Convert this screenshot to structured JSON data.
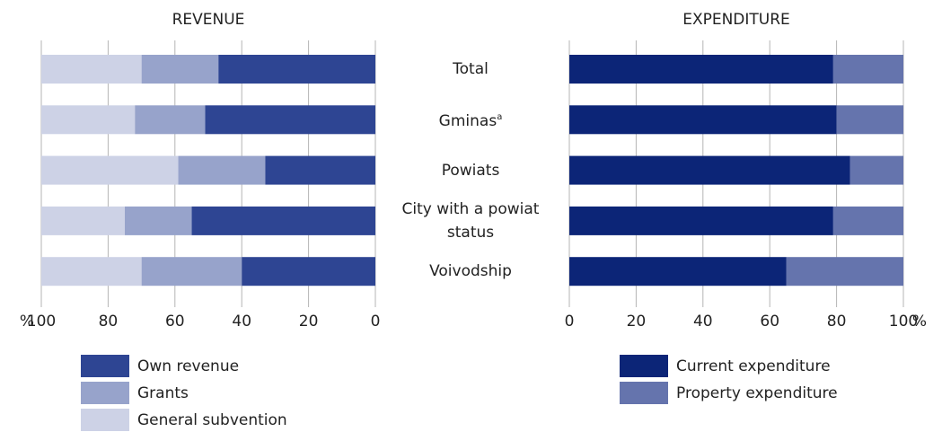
{
  "chart_data": [
    {
      "type": "bar",
      "orientation": "horizontal",
      "stacked": true,
      "title": "REVENUE",
      "categories": [
        "Total",
        "Gminas",
        "Powiats",
        "City with a powiat status",
        "Voivodship"
      ],
      "category_superscripts": [
        null,
        "a",
        null,
        null,
        null
      ],
      "series": [
        {
          "name": "Own revenue",
          "color": "#2e4593",
          "values": [
            47,
            51,
            33,
            55,
            40
          ]
        },
        {
          "name": "Grants",
          "color": "#97a3cb",
          "values": [
            23,
            21,
            26,
            20,
            30
          ]
        },
        {
          "name": "General subvention",
          "color": "#cdd2e6",
          "values": [
            30,
            28,
            41,
            25,
            30
          ]
        }
      ],
      "xlim": [
        100,
        0
      ],
      "xticks": [
        100,
        80,
        60,
        40,
        20,
        0
      ],
      "x_unit": "%",
      "grid": true
    },
    {
      "type": "bar",
      "orientation": "horizontal",
      "stacked": true,
      "title": "EXPENDITURE",
      "series": [
        {
          "name": "Current expenditure",
          "color": "#0c2577",
          "values": [
            79,
            80,
            84,
            79,
            65
          ]
        },
        {
          "name": "Property expenditure",
          "color": "#6574ad",
          "values": [
            21,
            20,
            16,
            21,
            35
          ]
        }
      ],
      "xlim": [
        0,
        100
      ],
      "xticks": [
        0,
        20,
        40,
        60,
        80,
        100
      ],
      "x_unit": "%",
      "grid": true
    }
  ]
}
